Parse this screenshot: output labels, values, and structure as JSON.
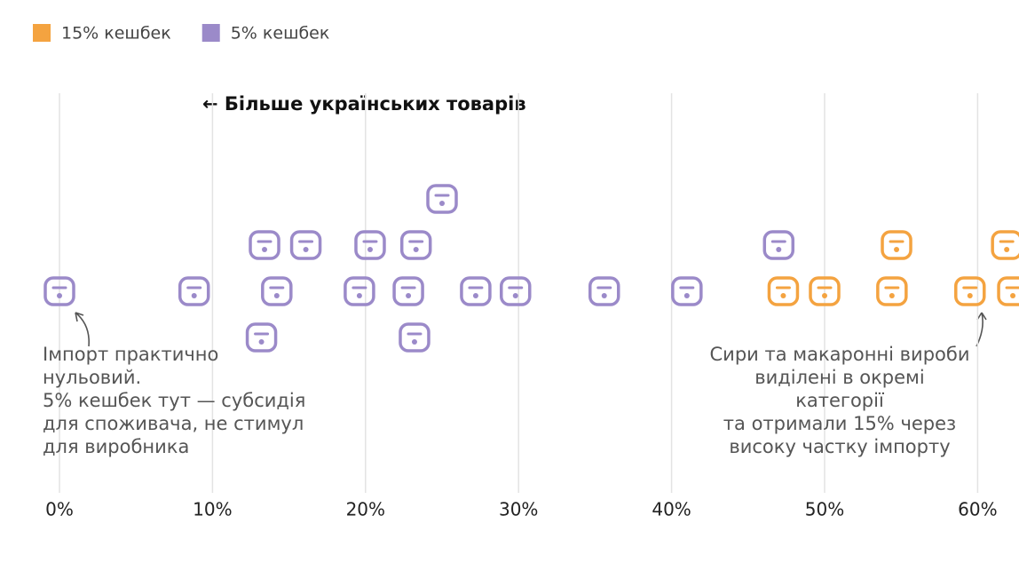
{
  "chart_data": {
    "type": "scatter",
    "header": "← Більше українських товарів",
    "series": [
      {
        "name": "15% кешбек",
        "color": "#f4a340",
        "values": [
          47.3,
          50.0,
          54.4,
          54.7,
          59.5,
          61.9,
          62.3
        ]
      },
      {
        "name": "5% кешбек",
        "color": "#9b8ac9",
        "values": [
          0,
          8.8,
          14.2,
          13.4,
          13.2,
          16.1,
          19.6,
          20.3,
          22.8,
          23.3,
          23.2,
          25.0,
          27.2,
          29.8,
          35.6,
          41.0,
          47.0
        ]
      }
    ],
    "xlim": [
      0,
      62.7
    ],
    "xticks": [
      {
        "value": 0,
        "label": "0%"
      },
      {
        "value": 10,
        "label": "10%"
      },
      {
        "value": 20,
        "label": "20%"
      },
      {
        "value": 30,
        "label": "30%"
      },
      {
        "value": 40,
        "label": "40%"
      },
      {
        "value": 50,
        "label": "50%"
      },
      {
        "value": 60,
        "label": "60%"
      }
    ],
    "grid": true,
    "annotations": [
      {
        "lines": [
          "Імпорт практично",
          "нульовий.",
          "5% кешбек тут — субсидія",
          "для споживача, не стимул",
          "для виробника"
        ]
      },
      {
        "lines": [
          "Сири та макаронні вироби",
          "виділені в окремі",
          "категорії",
          "та отримали 15% через",
          "високу частку імпорту"
        ]
      }
    ]
  }
}
